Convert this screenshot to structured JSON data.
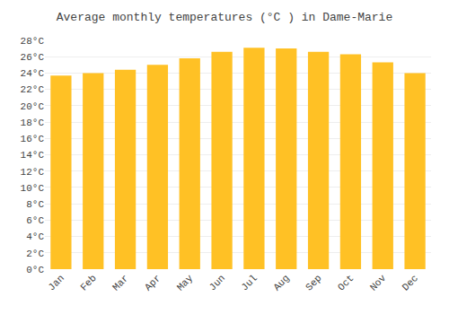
{
  "chart_data": {
    "type": "bar",
    "title": "Average monthly temperatures (°C ) in Dame-Marie",
    "categories": [
      "Jan",
      "Feb",
      "Mar",
      "Apr",
      "May",
      "Jun",
      "Jul",
      "Aug",
      "Sep",
      "Oct",
      "Nov",
      "Dec"
    ],
    "values": [
      23.7,
      24.0,
      24.4,
      25.0,
      25.8,
      26.6,
      27.1,
      27.0,
      26.6,
      26.3,
      25.3,
      24.0
    ],
    "color": "#FFC125",
    "ylim": [
      0,
      28
    ],
    "yticks": [
      {
        "value": 0,
        "label": "0°C"
      },
      {
        "value": 2,
        "label": "2°C"
      },
      {
        "value": 4,
        "label": "4°C"
      },
      {
        "value": 6,
        "label": "6°C"
      },
      {
        "value": 8,
        "label": "8°C"
      },
      {
        "value": 10,
        "label": "10°C"
      },
      {
        "value": 12,
        "label": "12°C"
      },
      {
        "value": 14,
        "label": "14°C"
      },
      {
        "value": 16,
        "label": "16°C"
      },
      {
        "value": 18,
        "label": "18°C"
      },
      {
        "value": 20,
        "label": "20°C"
      },
      {
        "value": 22,
        "label": "22°C"
      },
      {
        "value": 24,
        "label": "24°C"
      },
      {
        "value": 26,
        "label": "26°C"
      },
      {
        "value": 28,
        "label": "28°C"
      }
    ],
    "grid": true
  }
}
